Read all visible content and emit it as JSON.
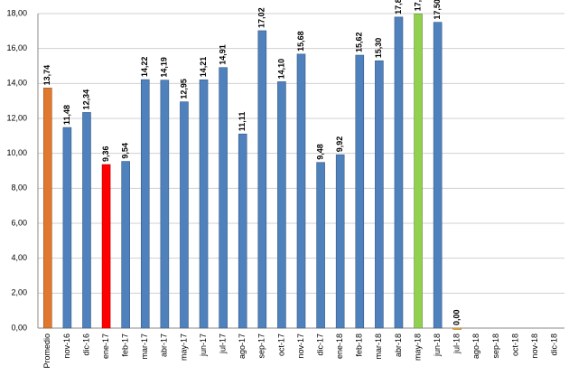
{
  "chart_data": {
    "type": "bar",
    "categories": [
      "Promedio",
      "nov-16",
      "dic-16",
      "ene-17",
      "feb-17",
      "mar-17",
      "abr-17",
      "may-17",
      "jun-17",
      "jul-17",
      "ago-17",
      "sep-17",
      "oct-17",
      "nov-17",
      "dic-17",
      "ene-18",
      "feb-18",
      "mar-18",
      "abr-18",
      "may-18",
      "jun-18",
      "jul-18",
      "ago-18",
      "sep-18",
      "oct-18",
      "nov-18",
      "dic-18"
    ],
    "values": [
      13.74,
      11.48,
      12.34,
      9.36,
      9.54,
      14.22,
      14.19,
      12.95,
      14.21,
      14.91,
      11.11,
      17.02,
      14.1,
      15.68,
      9.48,
      9.92,
      15.62,
      15.3,
      17.8,
      17.98,
      17.5,
      0.0,
      null,
      null,
      null,
      null,
      null
    ],
    "value_labels": [
      "13,74",
      "11,48",
      "12,34",
      "9,36",
      "9,54",
      "14,22",
      "14,19",
      "12,95",
      "14,21",
      "14,91",
      "11,11",
      "17,02",
      "14,10",
      "15,68",
      "9,48",
      "9,92",
      "15,62",
      "15,30",
      "17,80",
      "17,98",
      "17,50",
      "0,00",
      null,
      null,
      null,
      null,
      null
    ],
    "color": "#4f81bd",
    "colors": [
      "#e0782f",
      "#4f81bd",
      "#4f81bd",
      "#ff0000",
      "#4f81bd",
      "#4f81bd",
      "#4f81bd",
      "#4f81bd",
      "#4f81bd",
      "#4f81bd",
      "#4f81bd",
      "#4f81bd",
      "#4f81bd",
      "#4f81bd",
      "#4f81bd",
      "#4f81bd",
      "#4f81bd",
      "#4f81bd",
      "#4f81bd",
      "#92d050",
      "#4f81bd",
      "#f0b030",
      "#4f81bd",
      "#4f81bd",
      "#4f81bd",
      "#4f81bd",
      "#4f81bd"
    ],
    "ylim": [
      0,
      18
    ],
    "yticks": [
      {
        "value": 0,
        "label": "0,00"
      },
      {
        "value": 2,
        "label": "2,00"
      },
      {
        "value": 4,
        "label": "4,00"
      },
      {
        "value": 6,
        "label": "6,00"
      },
      {
        "value": 8,
        "label": "8,00"
      },
      {
        "value": 10,
        "label": "10,00"
      },
      {
        "value": 12,
        "label": "12,00"
      },
      {
        "value": 14,
        "label": "14,00"
      },
      {
        "value": 16,
        "label": "16,00"
      },
      {
        "value": 18,
        "label": "18,00"
      }
    ],
    "grid": true
  }
}
